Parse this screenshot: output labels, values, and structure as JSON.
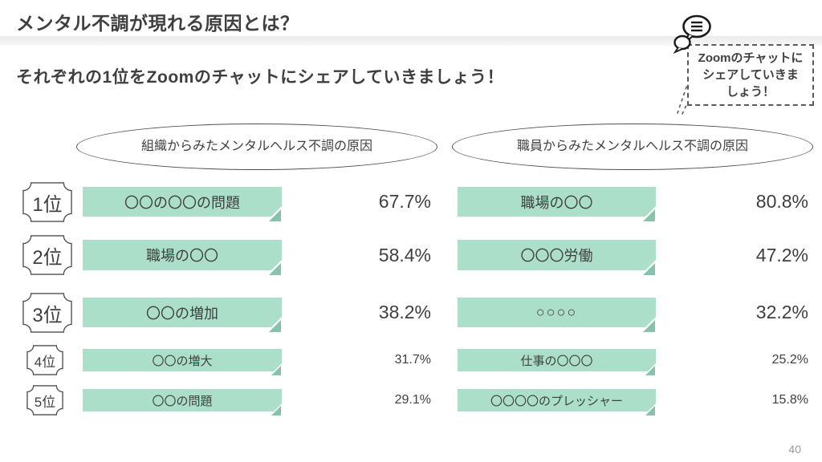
{
  "slide": {
    "title": "メンタル不調が現れる原因とは？",
    "subtitle": "それぞれの1位をZoomのチャットにシェアしていきましょう！",
    "page_number": "40"
  },
  "callout": {
    "icon": "chat-bubbles-icon",
    "text_lines": [
      "Zoomのチャットに",
      "シェアしていきま",
      "しょう！"
    ]
  },
  "chart_data": {
    "type": "table",
    "title": "メンタル不調が現れる原因とは？",
    "columns": [
      "組織からみたメンタルヘルス不調の原因",
      "職員からみたメンタルヘルス不調の原因"
    ],
    "rank_labels": [
      "1位",
      "2位",
      "3位",
      "4位",
      "5位"
    ],
    "rows": [
      {
        "rank": "1位",
        "org_cause": "〇〇の〇〇の問題",
        "org_pct": "67.7%",
        "staff_cause": "職場の〇〇",
        "staff_pct": "80.8%"
      },
      {
        "rank": "2位",
        "org_cause": "職場の〇〇",
        "org_pct": "58.4%",
        "staff_cause": "〇〇〇労働",
        "staff_pct": "47.2%"
      },
      {
        "rank": "3位",
        "org_cause": "〇〇の増加",
        "org_pct": "38.2%",
        "staff_cause": "○○○○",
        "staff_pct": "32.2%",
        "staff_cause_small": true
      },
      {
        "rank": "4位",
        "org_cause": "〇〇の増大",
        "org_pct": "31.7%",
        "staff_cause": "仕事の〇〇〇",
        "staff_pct": "25.2%"
      },
      {
        "rank": "5位",
        "org_cause": "〇〇の問題",
        "org_pct": "29.1%",
        "staff_cause": "〇〇〇〇のプレッシャー",
        "staff_pct": "15.8%"
      }
    ]
  },
  "colors": {
    "box_fill": "#abdfc9",
    "box_fold": "#85c3aa",
    "text": "#3f3f3f",
    "page_number": "#9a9a9a"
  }
}
